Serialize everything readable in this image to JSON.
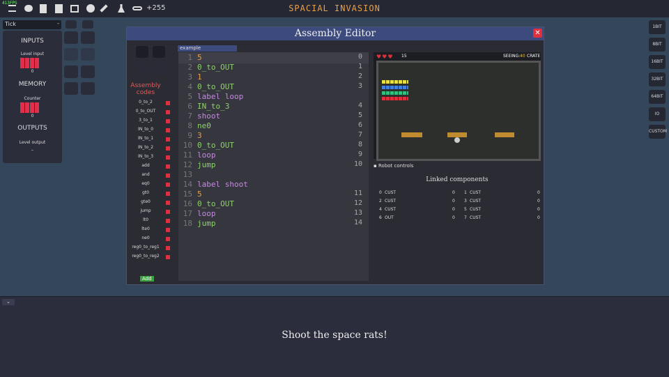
{
  "topbar": {
    "fps": "413FPS",
    "counter": "+255",
    "title": "SPACIAL INVASION"
  },
  "left_panel": {
    "tick": "Tick",
    "inputs": "INPUTS",
    "level_input": "Level input",
    "level_input_value": "0",
    "memory": "MEMORY",
    "counter": "Counter",
    "counter_value": "0",
    "outputs": "OUTPUTS",
    "level_output": "Level output",
    "level_output_value": "_"
  },
  "right_buttons": [
    "1BIT",
    "8BIT",
    "16BIT",
    "32BIT",
    "64BIT",
    "IO",
    "CUSTOM"
  ],
  "editor": {
    "title": "Assembly Editor",
    "codes_title": "Assembly codes",
    "codes": [
      "0_to_2",
      "0_to_OUT",
      "3_to_1",
      "IN_to_0",
      "IN_to_1",
      "IN_to_2",
      "IN_to_3",
      "add",
      "and",
      "eq0",
      "gt0",
      "gte0",
      "jump",
      "lt0",
      "lte0",
      "ne0",
      "reg0_to_reg1",
      "reg0_to_reg2"
    ],
    "add": "Add",
    "tab": "example",
    "lines": [
      {
        "line": 1,
        "text": "5",
        "addr": 0,
        "color": "#e8a04a"
      },
      {
        "line": 2,
        "text": "0_to_OUT",
        "addr": 1,
        "color": "#8fd16a"
      },
      {
        "line": 3,
        "text": "1",
        "addr": 2,
        "color": "#e8a04a"
      },
      {
        "line": 4,
        "text": "0_to_OUT",
        "addr": 3,
        "color": "#8fd16a"
      },
      {
        "line": 5,
        "text": "label loop",
        "addr": null,
        "color": "#c58ae0"
      },
      {
        "line": 6,
        "text": "IN_to_3",
        "addr": 4,
        "color": "#8fd16a"
      },
      {
        "line": 7,
        "text": "shoot",
        "addr": 5,
        "color": "#c58ae0"
      },
      {
        "line": 8,
        "text": "ne0",
        "addr": 6,
        "color": "#8fd16a"
      },
      {
        "line": 9,
        "text": "3",
        "addr": 7,
        "color": "#e8a04a"
      },
      {
        "line": 10,
        "text": "0_to_OUT",
        "addr": 8,
        "color": "#8fd16a"
      },
      {
        "line": 11,
        "text": "loop",
        "addr": 9,
        "color": "#c58ae0"
      },
      {
        "line": 12,
        "text": "jump",
        "addr": 10,
        "color": "#8fd16a"
      },
      {
        "line": 13,
        "text": "",
        "addr": null,
        "color": "#8fd16a"
      },
      {
        "line": 14,
        "text": "label shoot",
        "addr": null,
        "color": "#c58ae0"
      },
      {
        "line": 15,
        "text": "5",
        "addr": 11,
        "color": "#e8a04a"
      },
      {
        "line": 16,
        "text": "0_to_OUT",
        "addr": 12,
        "color": "#8fd16a"
      },
      {
        "line": 17,
        "text": "loop",
        "addr": 13,
        "color": "#c58ae0"
      },
      {
        "line": 18,
        "text": "jump",
        "addr": 14,
        "color": "#8fd16a"
      }
    ],
    "game": {
      "coins": "15",
      "seeing": "SEEING:",
      "seeing_value": "40",
      "seeing_item": "CRATE"
    },
    "robot_controls": "Robot controls",
    "linked_title": "Linked components",
    "linked": [
      [
        "0",
        "CUST",
        "0"
      ],
      [
        "1",
        "CUST",
        "0"
      ],
      [
        "2",
        "CUST",
        "0"
      ],
      [
        "3",
        "CUST",
        "0"
      ],
      [
        "4",
        "CUST",
        "0"
      ],
      [
        "5",
        "CUST",
        "0"
      ],
      [
        "6",
        "OUT",
        "0"
      ],
      [
        "7",
        "CUST",
        "0"
      ]
    ]
  },
  "footer": {
    "message": "Shoot the space rats!"
  }
}
